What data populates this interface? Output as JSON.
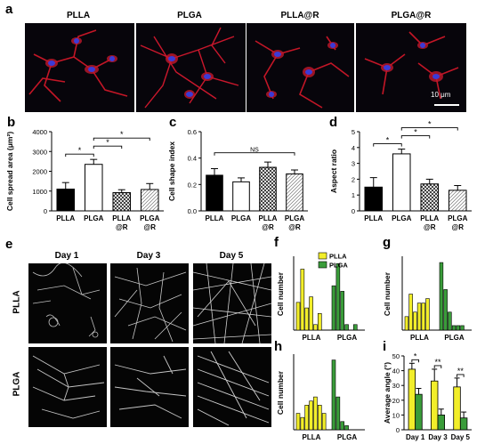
{
  "panel_a": {
    "letter": "a",
    "titles": [
      "PLLA",
      "PLGA",
      "PLLA@R",
      "PLGA@R"
    ],
    "scalebar_label": "10 μm"
  },
  "panel_e": {
    "letter": "e",
    "col_titles": [
      "Day 1",
      "Day 3",
      "Day 5"
    ],
    "row_labels": [
      "PLLA",
      "PLGA"
    ]
  },
  "colors": {
    "yellow": "#f2ee2a",
    "green": "#3a9c3a",
    "black": "#000000",
    "white": "#ffffff"
  },
  "chart_data": [
    {
      "id": "b",
      "letter": "b",
      "type": "bar",
      "ylabel": "Cell spread area (μm²)",
      "ylim": [
        0,
        4000
      ],
      "yticks": [
        0,
        1000,
        2000,
        3000,
        4000
      ],
      "categories": [
        "PLLA",
        "PLGA",
        "PLLA\n@R",
        "PLGA\n@R"
      ],
      "values": [
        1100,
        2350,
        920,
        1080
      ],
      "errors": [
        330,
        250,
        150,
        300
      ],
      "fills": [
        "black",
        "white",
        "cross",
        "diag"
      ],
      "sig": [
        {
          "from": 0,
          "to": 1,
          "label": "*"
        },
        {
          "from": 1,
          "to": 2,
          "label": "*"
        },
        {
          "from": 1,
          "to": 3,
          "label": "*"
        }
      ]
    },
    {
      "id": "c",
      "letter": "c",
      "type": "bar",
      "ylabel": "Cell shape index",
      "ylim": [
        0,
        0.6
      ],
      "yticks": [
        0.0,
        0.2,
        0.4,
        0.6
      ],
      "categories": [
        "PLLA",
        "PLGA",
        "PLLA\n@R",
        "PLGA\n@R"
      ],
      "values": [
        0.27,
        0.22,
        0.33,
        0.28
      ],
      "errors": [
        0.05,
        0.03,
        0.04,
        0.03
      ],
      "fills": [
        "black",
        "white",
        "cross",
        "diag"
      ],
      "sig": [
        {
          "from": 0,
          "to": 3,
          "label": "NS"
        }
      ]
    },
    {
      "id": "d",
      "letter": "d",
      "type": "bar",
      "ylabel": "Aspect ratio",
      "ylim": [
        0,
        5
      ],
      "yticks": [
        0,
        1,
        2,
        3,
        4,
        5
      ],
      "categories": [
        "PLLA",
        "PLGA",
        "PLLA\n@R",
        "PLGA\n@R"
      ],
      "values": [
        1.5,
        3.6,
        1.7,
        1.3
      ],
      "errors": [
        0.6,
        0.3,
        0.3,
        0.3
      ],
      "fills": [
        "black",
        "white",
        "cross",
        "diag"
      ],
      "sig": [
        {
          "from": 0,
          "to": 1,
          "label": "*"
        },
        {
          "from": 1,
          "to": 2,
          "label": "*"
        },
        {
          "from": 1,
          "to": 3,
          "label": "*"
        }
      ]
    },
    {
      "id": "f",
      "letter": "f",
      "type": "bar",
      "ylabel": "Cell number",
      "groups": [
        "PLLA",
        "PLGA"
      ],
      "series": [
        {
          "name": "PLLA",
          "color": "yellow",
          "values": [
            5,
            11,
            4,
            6,
            1,
            3
          ]
        },
        {
          "name": "PLGA",
          "color": "green",
          "values": [
            8,
            12,
            7,
            1,
            0,
            1
          ]
        }
      ],
      "ymax": 13,
      "legend": [
        "PLLA",
        "PLGA"
      ]
    },
    {
      "id": "g",
      "letter": "g",
      "type": "bar",
      "ylabel": "Cell number",
      "groups": [
        "PLLA",
        "PLGA"
      ],
      "series": [
        {
          "name": "PLLA",
          "color": "yellow",
          "values": [
            3,
            8,
            4,
            6,
            6,
            7
          ]
        },
        {
          "name": "PLGA",
          "color": "green",
          "values": [
            15,
            9,
            4,
            1,
            1,
            1
          ]
        }
      ],
      "ymax": 16
    },
    {
      "id": "h",
      "letter": "h",
      "type": "bar",
      "ylabel": "Cell number",
      "groups": [
        "PLLA",
        "PLGA"
      ],
      "series": [
        {
          "name": "PLLA",
          "color": "yellow",
          "values": [
            4,
            3,
            6,
            7,
            8,
            6,
            4
          ]
        },
        {
          "name": "PLGA",
          "color": "green",
          "values": [
            17,
            8,
            2,
            1,
            0,
            0
          ]
        }
      ],
      "ymax": 18
    },
    {
      "id": "i",
      "letter": "i",
      "type": "bar",
      "ylabel": "Average angle (°)",
      "ylim": [
        0,
        50
      ],
      "yticks": [
        0,
        10,
        20,
        30,
        40,
        50
      ],
      "categories": [
        "Day 1",
        "Day 3",
        "Day 5"
      ],
      "series": [
        {
          "name": "PLLA",
          "color": "yellow",
          "values": [
            41,
            33,
            29
          ],
          "errors": [
            4,
            8,
            6
          ]
        },
        {
          "name": "PLGA",
          "color": "green",
          "values": [
            24,
            10,
            8
          ],
          "errors": [
            4,
            4,
            4
          ]
        }
      ],
      "sig": [
        "*",
        "**",
        "**"
      ]
    }
  ]
}
